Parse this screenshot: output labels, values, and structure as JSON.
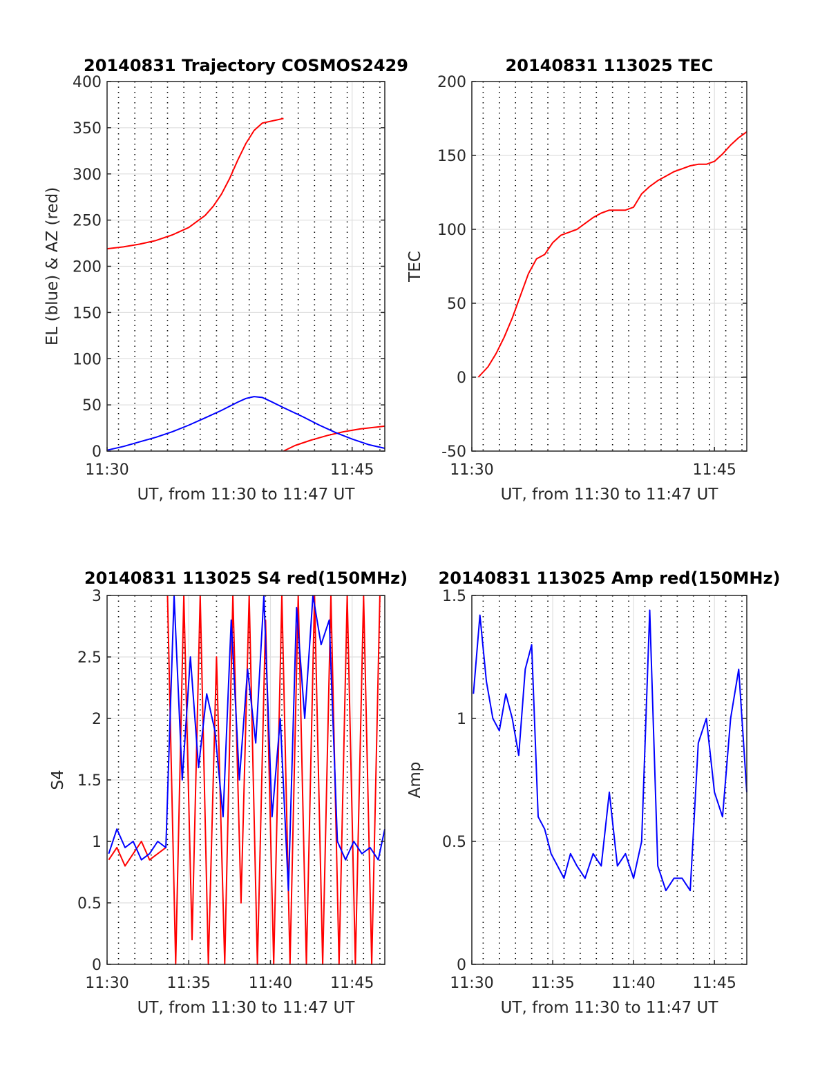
{
  "chart_data": [
    {
      "type": "line",
      "title": "20140831 Trajectory COSMOS2429",
      "xlabel": "UT, from 11:30 to 11:47 UT",
      "ylabel": "EL (blue) & AZ (red)",
      "xlim": [
        0,
        17
      ],
      "ylim": [
        0,
        400
      ],
      "x_ticks": [
        "11:30",
        "11:45"
      ],
      "y_ticks": [
        "0",
        "50",
        "100",
        "150",
        "200",
        "250",
        "300",
        "350",
        "400"
      ],
      "grid": true,
      "series": [
        {
          "color": "#ff0000",
          "segments": [
            {
              "x": [
                0,
                1,
                2,
                3,
                4,
                5,
                6,
                6.5,
                7,
                7.5,
                8,
                8.5,
                9,
                9.5,
                10.8
              ],
              "y": [
                219,
                221,
                224,
                228,
                234,
                242,
                255,
                265,
                278,
                295,
                315,
                333,
                347,
                355,
                360
              ]
            },
            {
              "x": [
                10.8,
                11.5,
                12.5,
                13.5,
                14.5,
                15.5,
                16.5,
                17
              ],
              "y": [
                0,
                6,
                12,
                17,
                21,
                24,
                26,
                27
              ]
            }
          ]
        },
        {
          "color": "#0000ff",
          "segments": [
            {
              "x": [
                0,
                1,
                2,
                3,
                4,
                5,
                6,
                7,
                8,
                8.5,
                9,
                9.5,
                10,
                10.8,
                12,
                13,
                14,
                15,
                16,
                17
              ],
              "y": [
                1,
                5,
                10,
                15,
                21,
                28,
                36,
                44,
                53,
                57,
                59,
                58,
                54,
                47,
                37,
                28,
                20,
                13,
                7,
                3
              ]
            }
          ]
        }
      ]
    },
    {
      "type": "line",
      "title": "20140831 113025 TEC",
      "xlabel": "UT, from 11:30 to 11:47 UT",
      "ylabel": "TEC",
      "xlim": [
        0,
        17
      ],
      "ylim": [
        -50,
        200
      ],
      "x_ticks": [
        "11:30",
        "11:45"
      ],
      "y_ticks": [
        "-50",
        "0",
        "50",
        "100",
        "150",
        "200"
      ],
      "grid": true,
      "series": [
        {
          "color": "#ff0000",
          "segments": [
            {
              "x": [
                0.4,
                1,
                1.5,
                2,
                2.5,
                3,
                3.5,
                4,
                4.5,
                5,
                5.5,
                6,
                6.5,
                7,
                7.5,
                8,
                8.5,
                9,
                9.5,
                10,
                10.5,
                11,
                11.5,
                12,
                12.5,
                13,
                13.5,
                14,
                14.5,
                15,
                15.5,
                16,
                16.5,
                17
              ],
              "y": [
                0,
                7,
                16,
                27,
                40,
                55,
                70,
                80,
                83,
                91,
                96,
                98,
                100,
                104,
                108,
                111,
                113,
                113,
                113,
                115,
                124,
                129,
                133,
                136,
                139,
                141,
                143,
                144,
                144,
                146,
                151,
                157,
                162,
                166
              ]
            }
          ]
        }
      ]
    },
    {
      "type": "line",
      "title": "20140831 113025 S4 red(150MHz)",
      "xlabel": "UT, from 11:30 to 11:47 UT",
      "ylabel": "S4",
      "xlim": [
        0,
        17
      ],
      "ylim": [
        0,
        3
      ],
      "x_ticks": [
        "11:30",
        "11:35",
        "11:40",
        "11:45"
      ],
      "y_ticks": [
        "0",
        "0.5",
        "1",
        "1.5",
        "2",
        "2.5",
        "3"
      ],
      "grid": true,
      "series": [
        {
          "color": "#ff0000",
          "segments": [
            {
              "x": [
                0.1,
                0.6,
                1.1,
                1.6,
                2.1,
                2.6,
                3.1,
                3.6
              ],
              "y": [
                0.85,
                0.95,
                0.8,
                0.9,
                1.0,
                0.85,
                0.9,
                0.95
              ]
            },
            {
              "x": [
                3.7,
                4.2,
                4.7,
                5.2,
                5.7,
                6.2,
                6.7,
                7.2,
                7.7,
                8.2,
                8.7,
                9.2,
                9.7,
                10.2,
                10.7,
                11.2,
                11.7,
                12.2,
                12.7,
                13.2,
                13.7,
                14.2,
                14.7,
                15.2,
                15.7,
                16.2,
                16.7
              ],
              "y": [
                3,
                0,
                3,
                0.2,
                3,
                0,
                2.5,
                0,
                3,
                0.5,
                3,
                0,
                2.8,
                0,
                3,
                0,
                3,
                0,
                3,
                0,
                3,
                0,
                3,
                0,
                3,
                0,
                3
              ]
            }
          ]
        },
        {
          "color": "#0000ff",
          "segments": [
            {
              "x": [
                0.1,
                0.6,
                1.1,
                1.6,
                2.1,
                2.6,
                3.1,
                3.6,
                4.1,
                4.6,
                5.1,
                5.6,
                6.1,
                6.6,
                7.1,
                7.6,
                8.1,
                8.6,
                9.1,
                9.6,
                10.1,
                10.6,
                11.1,
                11.6,
                12.1,
                12.6,
                13.1,
                13.6,
                14.1,
                14.6,
                15.1,
                15.6,
                16.1,
                16.6,
                17
              ],
              "y": [
                0.9,
                1.1,
                0.95,
                1.0,
                0.85,
                0.9,
                1.0,
                0.95,
                3,
                1.5,
                2.5,
                1.6,
                2.2,
                1.9,
                1.2,
                2.8,
                1.5,
                2.4,
                1.8,
                3,
                1.2,
                2.0,
                0.6,
                2.9,
                2.0,
                3,
                2.6,
                2.8,
                1.0,
                0.85,
                1.0,
                0.9,
                0.95,
                0.85,
                1.1
              ]
            }
          ]
        }
      ]
    },
    {
      "type": "line",
      "title": "20140831 113025 Amp red(150MHz)",
      "xlabel": "UT, from 11:30 to 11:47 UT",
      "ylabel": "Amp",
      "xlim": [
        0,
        17
      ],
      "ylim": [
        0,
        1.5
      ],
      "x_ticks": [
        "11:30",
        "11:35",
        "11:40",
        "11:45"
      ],
      "y_ticks": [
        "0",
        "0.5",
        "1",
        "1.5"
      ],
      "grid": true,
      "series": [
        {
          "color": "#0000ff",
          "segments": [
            {
              "x": [
                0.1,
                0.5,
                0.9,
                1.3,
                1.7,
                2.1,
                2.5,
                2.9,
                3.3,
                3.7,
                4.1,
                4.5,
                4.9,
                5.3,
                5.7,
                6.1,
                6.5,
                7.0,
                7.5,
                8.0,
                8.5,
                9.0,
                9.5,
                10.0,
                10.5,
                11.0,
                11.5,
                12.0,
                12.5,
                13.0,
                13.5,
                14.0,
                14.5,
                15.0,
                15.5,
                16.0,
                16.5,
                17
              ],
              "y": [
                1.1,
                1.42,
                1.15,
                1.0,
                0.95,
                1.1,
                1.0,
                0.85,
                1.2,
                1.3,
                0.6,
                0.55,
                0.45,
                0.4,
                0.35,
                0.45,
                0.4,
                0.35,
                0.45,
                0.4,
                0.7,
                0.4,
                0.45,
                0.35,
                0.5,
                1.44,
                0.4,
                0.3,
                0.35,
                0.35,
                0.3,
                0.9,
                1.0,
                0.7,
                0.6,
                1.0,
                1.2,
                0.7
              ]
            }
          ]
        }
      ]
    }
  ]
}
